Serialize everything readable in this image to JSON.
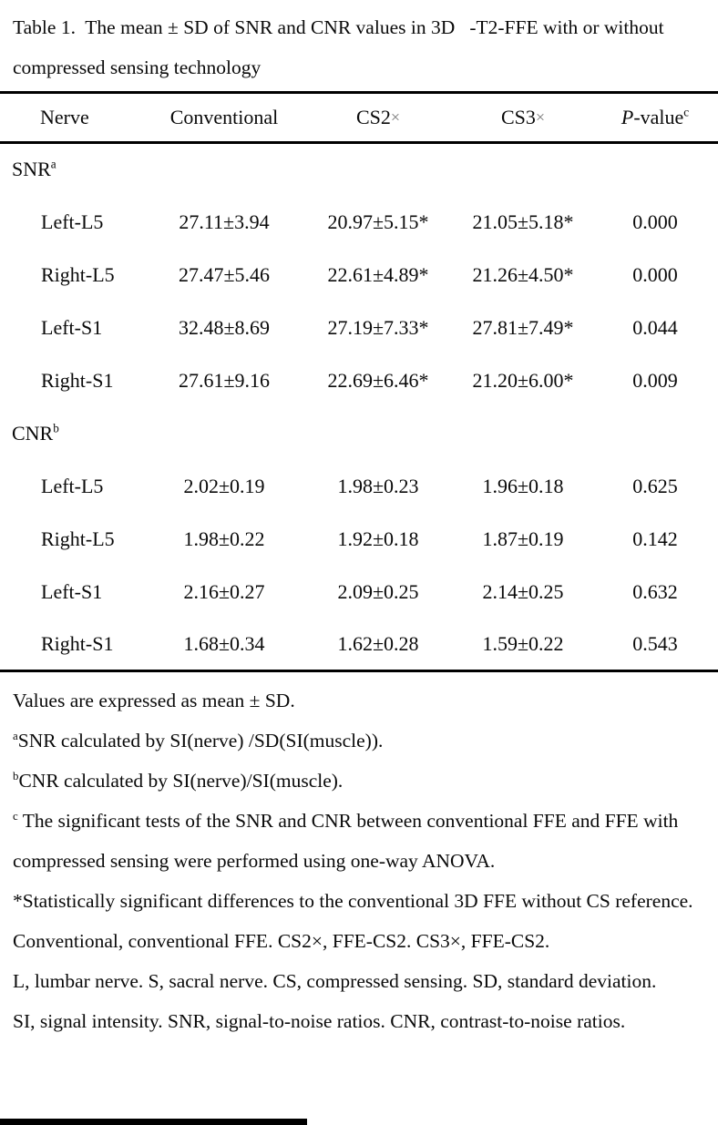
{
  "page": {
    "title": "Table 1.  The mean ± SD of SNR and CNR values in 3D   -T2-FFE with or without compressed sensing technology"
  },
  "table": {
    "columns": {
      "nerve": "Nerve",
      "conventional": "Conventional",
      "cs2": "CS2",
      "cs2_times": "×",
      "cs3": "CS3",
      "cs3_times": "×",
      "p_italic": "P",
      "p_rest": "-value",
      "p_sup": "c"
    },
    "sections": [
      {
        "label": "SNR",
        "sup": "a",
        "rows": [
          {
            "nerve": "Left-L5",
            "conventional": "27.11±3.94",
            "cs2": "20.97±5.15*",
            "cs3": "21.05±5.18*",
            "p": "0.000"
          },
          {
            "nerve": "Right-L5",
            "conventional": "27.47±5.46",
            "cs2": "22.61±4.89*",
            "cs3": "21.26±4.50*",
            "p": "0.000"
          },
          {
            "nerve": "Left-S1",
            "conventional": "32.48±8.69",
            "cs2": "27.19±7.33*",
            "cs3": "27.81±7.49*",
            "p": "0.044"
          },
          {
            "nerve": "Right-S1",
            "conventional": "27.61±9.16",
            "cs2": "22.69±6.46*",
            "cs3": "21.20±6.00*",
            "p": "0.009"
          }
        ]
      },
      {
        "label": "CNR",
        "sup": "b",
        "rows": [
          {
            "nerve": "Left-L5",
            "conventional": "2.02±0.19",
            "cs2": "1.98±0.23",
            "cs3": "1.96±0.18",
            "p": "0.625"
          },
          {
            "nerve": "Right-L5",
            "conventional": "1.98±0.22",
            "cs2": "1.92±0.18",
            "cs3": "1.87±0.19",
            "p": "0.142"
          },
          {
            "nerve": "Left-S1",
            "conventional": "2.16±0.27",
            "cs2": "2.09±0.25",
            "cs3": "2.14±0.25",
            "p": "0.632"
          },
          {
            "nerve": "Right-S1",
            "conventional": "1.68±0.34",
            "cs2": "1.62±0.28",
            "cs3": "1.59±0.22",
            "p": "0.543"
          }
        ]
      }
    ]
  },
  "footnotes": [
    {
      "sup": "",
      "text": "Values are expressed as mean ± SD."
    },
    {
      "sup": "a",
      "text": "SNR calculated by SI(nerve) /SD(SI(muscle))."
    },
    {
      "sup": "b",
      "text": "CNR calculated by SI(nerve)/SI(muscle)."
    },
    {
      "sup": "c",
      "text": " The significant tests of the SNR and CNR between conventional FFE and FFE with compressed sensing were performed using one-way ANOVA."
    },
    {
      "sup": "",
      "text": "*Statistically significant differences to the conventional 3D FFE without CS reference."
    },
    {
      "sup": "",
      "text": "Conventional, conventional FFE. CS2×, FFE-CS2. CS3×, FFE-CS2."
    },
    {
      "sup": "",
      "text": "L, lumbar nerve. S, sacral nerve. CS, compressed sensing. SD, standard deviation."
    },
    {
      "sup": "",
      "text": "SI, signal intensity. SNR, signal-to-noise ratios. CNR, contrast-to-noise ratios."
    }
  ]
}
